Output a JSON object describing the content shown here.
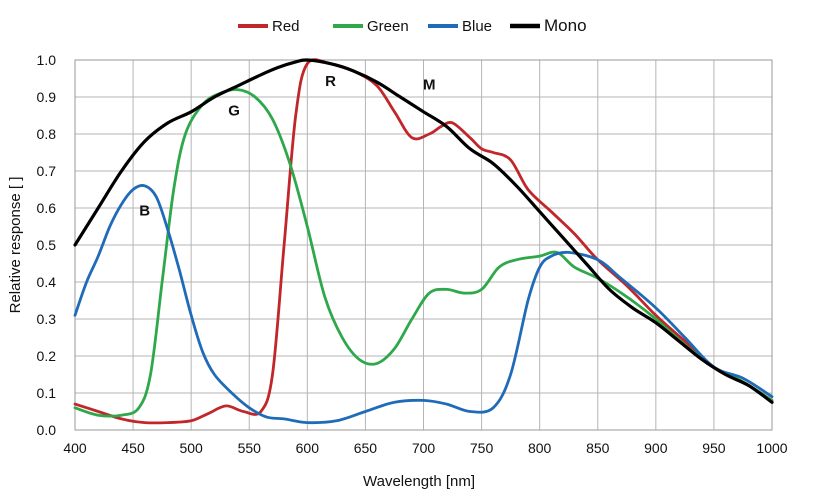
{
  "chart_data": {
    "type": "line",
    "title": "",
    "xlabel": "Wavelength [nm]",
    "ylabel": "Relative response [ ]",
    "xlim": [
      400,
      1000
    ],
    "ylim": [
      0,
      1.0
    ],
    "x_ticks": [
      400,
      450,
      500,
      550,
      600,
      650,
      700,
      750,
      800,
      850,
      900,
      950,
      1000
    ],
    "y_ticks": [
      0.0,
      0.1,
      0.2,
      0.3,
      0.4,
      0.5,
      0.6,
      0.7,
      0.8,
      0.9,
      1.0
    ],
    "y_tick_labels": [
      "0.0",
      "0.1",
      "0.2",
      "0.3",
      "0.4",
      "0.5",
      "0.6",
      "0.7",
      "0.8",
      "0.9",
      "1.0"
    ],
    "grid": true,
    "legend_position": "top",
    "series": [
      {
        "name": "Red",
        "color": "#c0262a",
        "points": [
          [
            400,
            0.07
          ],
          [
            420,
            0.05
          ],
          [
            440,
            0.03
          ],
          [
            460,
            0.02
          ],
          [
            480,
            0.02
          ],
          [
            500,
            0.025
          ],
          [
            515,
            0.045
          ],
          [
            530,
            0.065
          ],
          [
            545,
            0.05
          ],
          [
            560,
            0.05
          ],
          [
            570,
            0.15
          ],
          [
            580,
            0.5
          ],
          [
            590,
            0.85
          ],
          [
            600,
            0.99
          ],
          [
            620,
            0.99
          ],
          [
            640,
            0.97
          ],
          [
            660,
            0.93
          ],
          [
            675,
            0.86
          ],
          [
            690,
            0.79
          ],
          [
            705,
            0.8
          ],
          [
            715,
            0.82
          ],
          [
            725,
            0.83
          ],
          [
            740,
            0.79
          ],
          [
            750,
            0.76
          ],
          [
            760,
            0.75
          ],
          [
            775,
            0.73
          ],
          [
            790,
            0.65
          ],
          [
            810,
            0.59
          ],
          [
            830,
            0.53
          ],
          [
            850,
            0.46
          ],
          [
            875,
            0.39
          ],
          [
            900,
            0.31
          ],
          [
            925,
            0.24
          ],
          [
            950,
            0.17
          ],
          [
            975,
            0.13
          ],
          [
            1000,
            0.08
          ]
        ]
      },
      {
        "name": "Green",
        "color": "#2ea84a",
        "points": [
          [
            400,
            0.06
          ],
          [
            420,
            0.04
          ],
          [
            440,
            0.04
          ],
          [
            455,
            0.06
          ],
          [
            465,
            0.15
          ],
          [
            475,
            0.4
          ],
          [
            485,
            0.65
          ],
          [
            495,
            0.8
          ],
          [
            510,
            0.88
          ],
          [
            525,
            0.91
          ],
          [
            540,
            0.92
          ],
          [
            555,
            0.9
          ],
          [
            570,
            0.84
          ],
          [
            585,
            0.72
          ],
          [
            600,
            0.55
          ],
          [
            615,
            0.36
          ],
          [
            630,
            0.25
          ],
          [
            645,
            0.19
          ],
          [
            660,
            0.18
          ],
          [
            675,
            0.22
          ],
          [
            690,
            0.3
          ],
          [
            705,
            0.37
          ],
          [
            720,
            0.38
          ],
          [
            735,
            0.37
          ],
          [
            750,
            0.38
          ],
          [
            765,
            0.44
          ],
          [
            780,
            0.46
          ],
          [
            800,
            0.47
          ],
          [
            815,
            0.48
          ],
          [
            830,
            0.44
          ],
          [
            850,
            0.41
          ],
          [
            875,
            0.36
          ],
          [
            900,
            0.3
          ],
          [
            925,
            0.23
          ],
          [
            950,
            0.17
          ],
          [
            975,
            0.13
          ],
          [
            1000,
            0.08
          ]
        ]
      },
      {
        "name": "Blue",
        "color": "#1f6bb8",
        "points": [
          [
            400,
            0.31
          ],
          [
            410,
            0.4
          ],
          [
            420,
            0.47
          ],
          [
            430,
            0.55
          ],
          [
            440,
            0.61
          ],
          [
            450,
            0.65
          ],
          [
            460,
            0.66
          ],
          [
            470,
            0.63
          ],
          [
            480,
            0.54
          ],
          [
            490,
            0.43
          ],
          [
            500,
            0.31
          ],
          [
            510,
            0.21
          ],
          [
            520,
            0.15
          ],
          [
            535,
            0.1
          ],
          [
            550,
            0.06
          ],
          [
            565,
            0.035
          ],
          [
            580,
            0.03
          ],
          [
            600,
            0.02
          ],
          [
            625,
            0.025
          ],
          [
            650,
            0.05
          ],
          [
            675,
            0.075
          ],
          [
            700,
            0.08
          ],
          [
            720,
            0.07
          ],
          [
            740,
            0.05
          ],
          [
            760,
            0.06
          ],
          [
            775,
            0.15
          ],
          [
            790,
            0.35
          ],
          [
            800,
            0.44
          ],
          [
            810,
            0.47
          ],
          [
            825,
            0.48
          ],
          [
            850,
            0.46
          ],
          [
            870,
            0.41
          ],
          [
            900,
            0.33
          ],
          [
            925,
            0.25
          ],
          [
            950,
            0.17
          ],
          [
            975,
            0.14
          ],
          [
            1000,
            0.09
          ]
        ]
      },
      {
        "name": "Mono",
        "color": "#000000",
        "points": [
          [
            400,
            0.5
          ],
          [
            420,
            0.6
          ],
          [
            440,
            0.7
          ],
          [
            460,
            0.78
          ],
          [
            480,
            0.83
          ],
          [
            500,
            0.86
          ],
          [
            520,
            0.9
          ],
          [
            540,
            0.93
          ],
          [
            560,
            0.96
          ],
          [
            575,
            0.98
          ],
          [
            590,
            0.995
          ],
          [
            600,
            1.0
          ],
          [
            620,
            0.99
          ],
          [
            640,
            0.97
          ],
          [
            660,
            0.94
          ],
          [
            680,
            0.9
          ],
          [
            700,
            0.86
          ],
          [
            720,
            0.82
          ],
          [
            740,
            0.76
          ],
          [
            760,
            0.72
          ],
          [
            780,
            0.66
          ],
          [
            800,
            0.59
          ],
          [
            820,
            0.52
          ],
          [
            840,
            0.45
          ],
          [
            860,
            0.38
          ],
          [
            880,
            0.33
          ],
          [
            900,
            0.29
          ],
          [
            920,
            0.24
          ],
          [
            940,
            0.19
          ],
          [
            960,
            0.15
          ],
          [
            980,
            0.12
          ],
          [
            1000,
            0.075
          ]
        ]
      }
    ],
    "annotations": [
      {
        "text": "R",
        "x": 620,
        "y": 0.93
      },
      {
        "text": "M",
        "x": 705,
        "y": 0.92
      },
      {
        "text": "G",
        "x": 537,
        "y": 0.85
      },
      {
        "text": "B",
        "x": 460,
        "y": 0.58
      }
    ]
  }
}
